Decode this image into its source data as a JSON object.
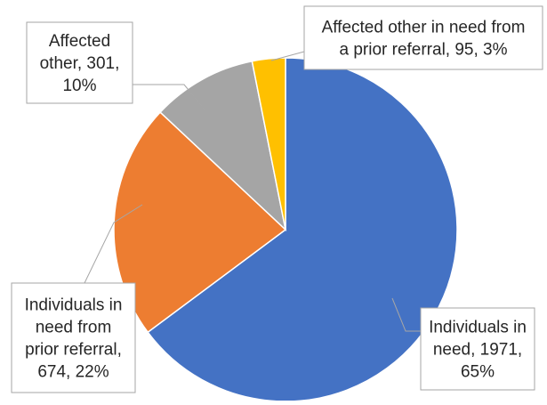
{
  "chart_data": {
    "type": "pie",
    "title": "",
    "slices": [
      {
        "label_lines": [
          "Individuals in",
          "need, 1971,",
          "65%"
        ],
        "value": 1971,
        "percent": 65,
        "color": "#4472C4"
      },
      {
        "label_lines": [
          "Individuals in",
          "need from",
          "prior referral,",
          "674, 22%"
        ],
        "value": 674,
        "percent": 22,
        "color": "#ED7D31"
      },
      {
        "label_lines": [
          "Affected",
          "other, 301,",
          "10%"
        ],
        "value": 301,
        "percent": 10,
        "color": "#A5A5A5"
      },
      {
        "label_lines": [
          "Affected other in need from",
          "a prior referral, 95, 3%"
        ],
        "value": 95,
        "percent": 3,
        "color": "#FFC000"
      }
    ],
    "legend": "none",
    "start_angle": "12 o'clock, clockwise",
    "data_labels": "callout"
  }
}
